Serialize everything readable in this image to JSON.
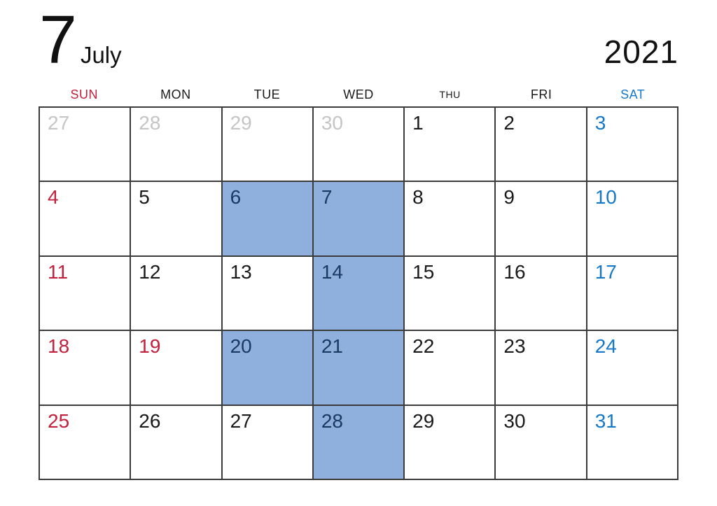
{
  "header": {
    "month_number": "7",
    "month_name": "July",
    "year": "2021"
  },
  "colors": {
    "red": "#c2203c",
    "saturday_blue": "#1578c8",
    "highlight_bg": "#8fafdc",
    "highlight_text": "#1b3a63",
    "prev_month_gray": "#c5c5c5",
    "weekday_black": "#1a1a1a",
    "grid_line": "#3b3b3b"
  },
  "weekdays": [
    {
      "label": "SUN",
      "style": "sun"
    },
    {
      "label": "MON",
      "style": "normal"
    },
    {
      "label": "TUE",
      "style": "normal"
    },
    {
      "label": "WED",
      "style": "normal"
    },
    {
      "label": "THU",
      "style": "small"
    },
    {
      "label": "FRI",
      "style": "normal"
    },
    {
      "label": "SAT",
      "style": "sat"
    }
  ],
  "cells": [
    {
      "day": "27",
      "type": "prev",
      "highlighted": false
    },
    {
      "day": "28",
      "type": "prev",
      "highlighted": false
    },
    {
      "day": "29",
      "type": "prev",
      "highlighted": false
    },
    {
      "day": "30",
      "type": "prev",
      "highlighted": false
    },
    {
      "day": "1",
      "type": "normal",
      "highlighted": false
    },
    {
      "day": "2",
      "type": "normal",
      "highlighted": false
    },
    {
      "day": "3",
      "type": "sat",
      "highlighted": false
    },
    {
      "day": "4",
      "type": "sun",
      "highlighted": false
    },
    {
      "day": "5",
      "type": "normal",
      "highlighted": false
    },
    {
      "day": "6",
      "type": "normal",
      "highlighted": true
    },
    {
      "day": "7",
      "type": "normal",
      "highlighted": true
    },
    {
      "day": "8",
      "type": "normal",
      "highlighted": false
    },
    {
      "day": "9",
      "type": "normal",
      "highlighted": false
    },
    {
      "day": "10",
      "type": "sat",
      "highlighted": false
    },
    {
      "day": "11",
      "type": "sun",
      "highlighted": false
    },
    {
      "day": "12",
      "type": "normal",
      "highlighted": false
    },
    {
      "day": "13",
      "type": "normal",
      "highlighted": false
    },
    {
      "day": "14",
      "type": "normal",
      "highlighted": true
    },
    {
      "day": "15",
      "type": "normal",
      "highlighted": false
    },
    {
      "day": "16",
      "type": "normal",
      "highlighted": false
    },
    {
      "day": "17",
      "type": "sat",
      "highlighted": false
    },
    {
      "day": "18",
      "type": "sun",
      "highlighted": false
    },
    {
      "day": "19",
      "type": "holiday",
      "highlighted": false
    },
    {
      "day": "20",
      "type": "normal",
      "highlighted": true
    },
    {
      "day": "21",
      "type": "normal",
      "highlighted": true
    },
    {
      "day": "22",
      "type": "normal",
      "highlighted": false
    },
    {
      "day": "23",
      "type": "normal",
      "highlighted": false
    },
    {
      "day": "24",
      "type": "sat",
      "highlighted": false
    },
    {
      "day": "25",
      "type": "sun",
      "highlighted": false
    },
    {
      "day": "26",
      "type": "normal",
      "highlighted": false
    },
    {
      "day": "27",
      "type": "normal",
      "highlighted": false
    },
    {
      "day": "28",
      "type": "normal",
      "highlighted": true
    },
    {
      "day": "29",
      "type": "normal",
      "highlighted": false
    },
    {
      "day": "30",
      "type": "normal",
      "highlighted": false
    },
    {
      "day": "31",
      "type": "sat",
      "highlighted": false
    }
  ]
}
